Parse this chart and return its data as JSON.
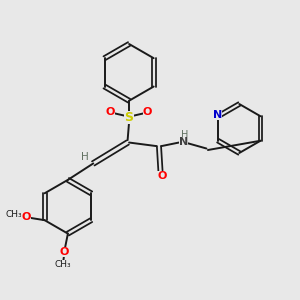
{
  "bg_color": "#e8e8e8",
  "bond_color": "#1a1a1a",
  "S_color": "#cccc00",
  "O_color": "#ff0000",
  "N_color": "#0000cc",
  "H_color": "#607060",
  "text_color": "#1a1a1a",
  "figsize": [
    3.0,
    3.0
  ],
  "dpi": 100,
  "xlim": [
    0,
    10
  ],
  "ylim": [
    0,
    10
  ]
}
